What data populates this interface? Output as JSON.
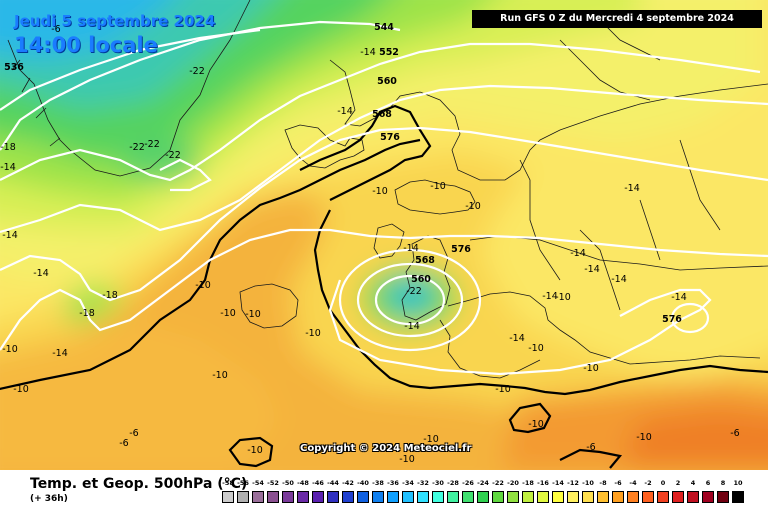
{
  "header": {
    "date_line": "Jeudi 5 septembre 2024",
    "time_line": "14:00 locale",
    "run_info": "Run GFS 0 Z du Mercredi 4 septembre 2024"
  },
  "copyright": "Copyright © 2024 Meteociel.fr",
  "legend": {
    "title": "Temp. et Geop. 500hPa (°C)",
    "lead": "(+ 36h)",
    "scale_values": [
      "-58",
      "-56",
      "-54",
      "-52",
      "-50",
      "-48",
      "-46",
      "-44",
      "-42",
      "-40",
      "-38",
      "-36",
      "-34",
      "-32",
      "-30",
      "-28",
      "-26",
      "-24",
      "-22",
      "-20",
      "-18",
      "-16",
      "-14",
      "-12",
      "-10",
      "-8",
      "-6",
      "-4",
      "-2",
      "0",
      "2",
      "4",
      "6",
      "8",
      "10"
    ],
    "scale_colors": [
      "#cccccc",
      "#b0b0b0",
      "#9a6f9a",
      "#8a5090",
      "#7a3a9a",
      "#6a2aa6",
      "#5a20b0",
      "#3030c0",
      "#2040d0",
      "#1060e0",
      "#1080f0",
      "#10a0ff",
      "#20c0ff",
      "#30e0ff",
      "#40ffe0",
      "#40f0a0",
      "#40e070",
      "#30d050",
      "#60d840",
      "#90e040",
      "#c0f040",
      "#e0f840",
      "#ffff40",
      "#fff060",
      "#ffe050",
      "#ffc030",
      "#ffa020",
      "#ff8020",
      "#ff6020",
      "#f04020",
      "#e02020",
      "#c01020",
      "#a00020",
      "#700010",
      "#000000"
    ]
  },
  "map_labels": {
    "geopotential": [
      "544",
      "552",
      "560",
      "568",
      "576",
      "576",
      "568",
      "560",
      "576",
      "536"
    ],
    "temperature": [
      "-6",
      "-22",
      "-22",
      "-22",
      "-22",
      "-18",
      "-14",
      "-18",
      "-14",
      "-10",
      "-14",
      "-10",
      "-10",
      "-10",
      "-14",
      "-14",
      "-10",
      "-10",
      "-18",
      "-14",
      "-10",
      "-10",
      "-10",
      "-10",
      "-10",
      "-10",
      "-10",
      "-10",
      "-6",
      "-6",
      "-10",
      "-10",
      "-10",
      "-14",
      "-14",
      "-14",
      "-14",
      "-14",
      "-14",
      "-10",
      "-14",
      "-10",
      "-14",
      "-22",
      "-14",
      "-6",
      "-6",
      "-10"
    ]
  }
}
